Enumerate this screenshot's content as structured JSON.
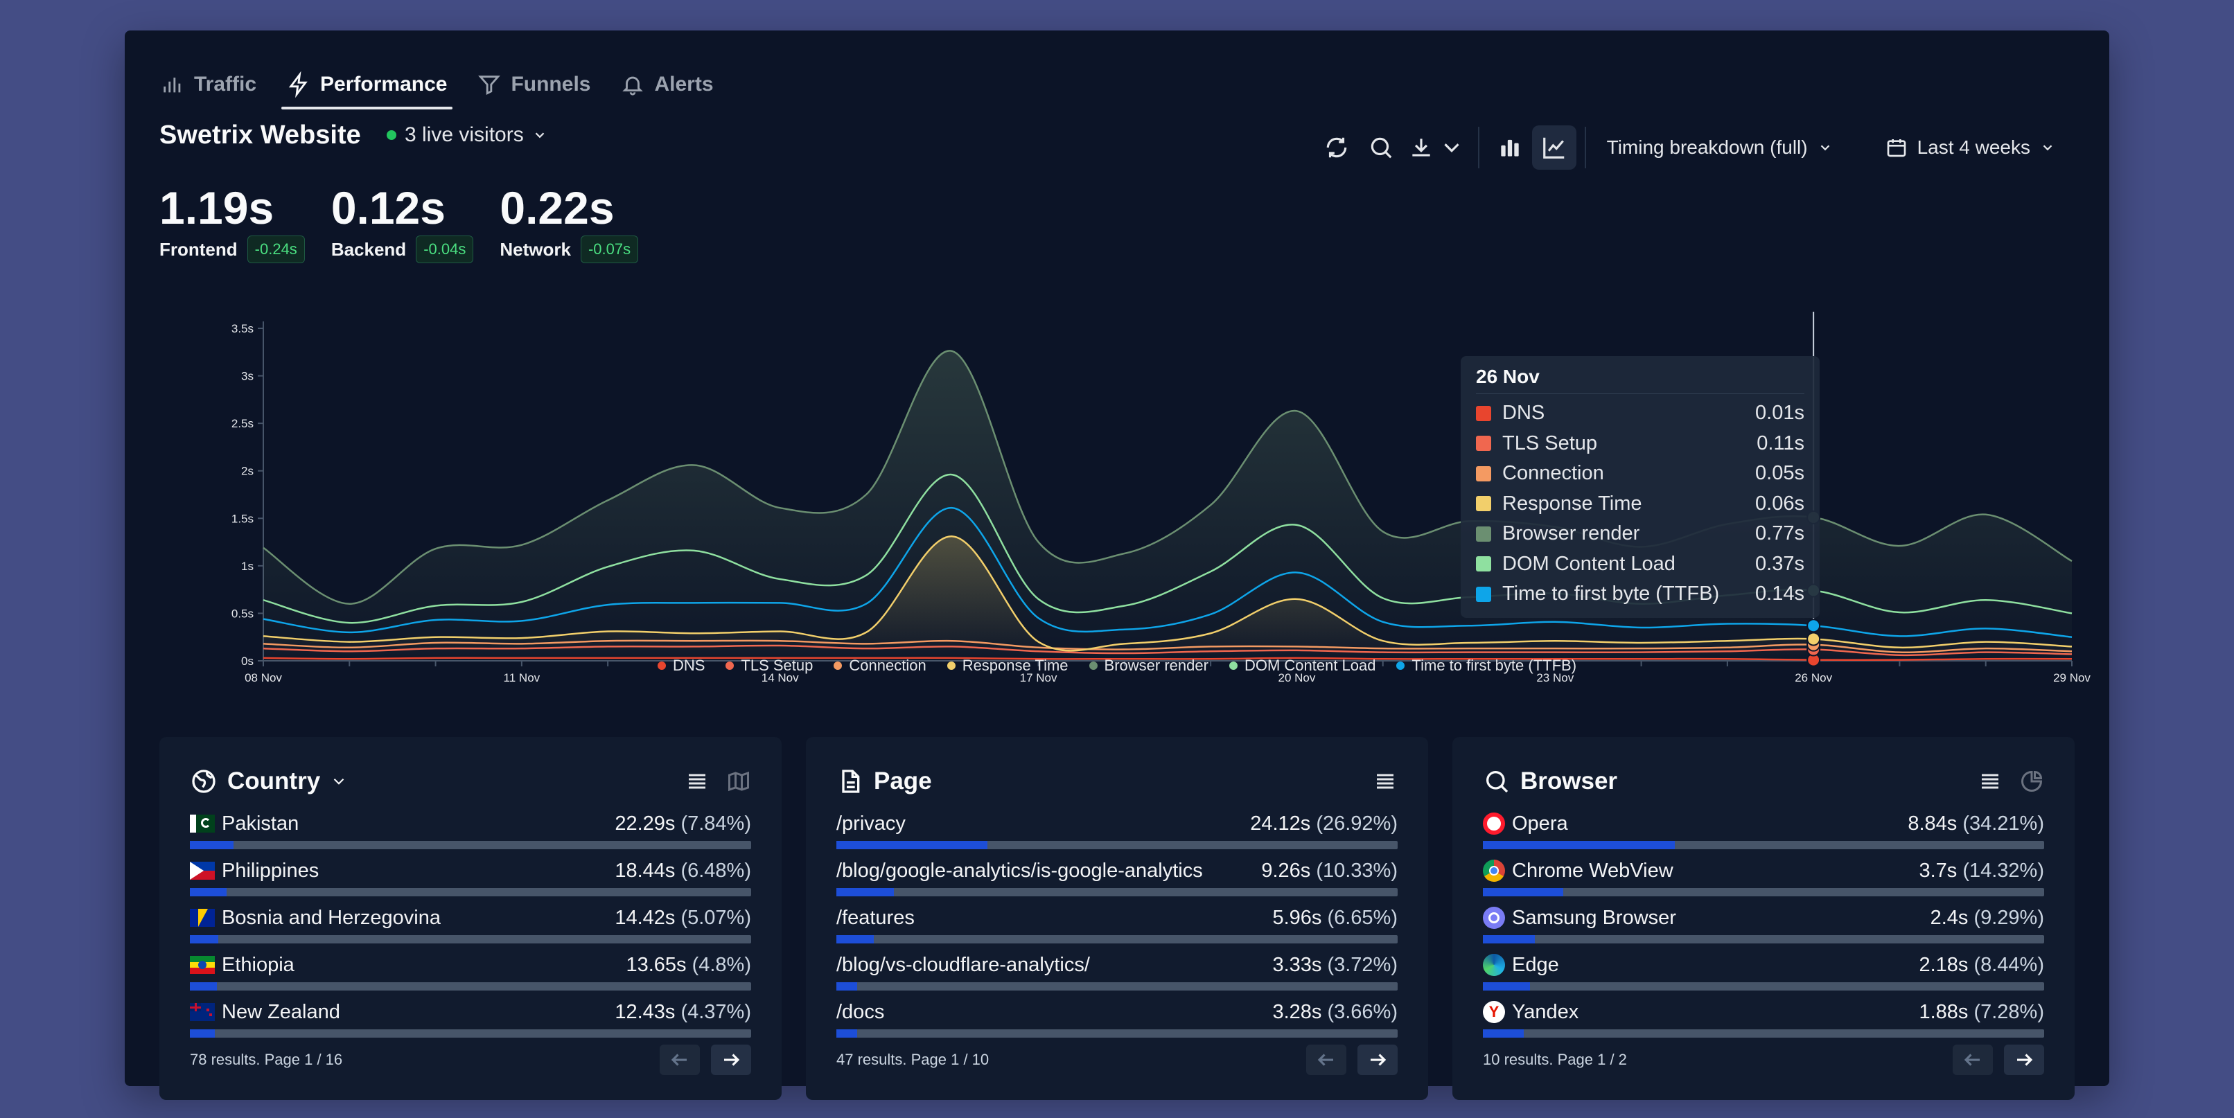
{
  "tabs": [
    {
      "label": "Traffic",
      "icon": "bar-chart-icon"
    },
    {
      "label": "Performance",
      "icon": "lightning-icon",
      "active": true
    },
    {
      "label": "Funnels",
      "icon": "funnel-icon"
    },
    {
      "label": "Alerts",
      "icon": "bell-icon"
    }
  ],
  "header": {
    "site_title": "Swetrix Website",
    "live_visitors": "3 live visitors",
    "timing_dropdown": "Timing breakdown (full)",
    "period_dropdown": "Last 4 weeks"
  },
  "metrics": [
    {
      "value": "1.19s",
      "label": "Frontend",
      "delta": "-0.24s"
    },
    {
      "value": "0.12s",
      "label": "Backend",
      "delta": "-0.04s"
    },
    {
      "value": "0.22s",
      "label": "Network",
      "delta": "-0.07s"
    }
  ],
  "colors": {
    "DNS": "#e8452e",
    "TLS Setup": "#f0674f",
    "Connection": "#f49a62",
    "Response Time": "#f2cf6b",
    "Browser render": "#6b8f71",
    "DOM Content Load": "#8fe0a0",
    "Time to first byte (TTFB)": "#0ea5e9",
    "accent": "#1d4ed8"
  },
  "chart_data": {
    "type": "area",
    "x_ticks": [
      "08 Nov",
      "11 Nov",
      "14 Nov",
      "17 Nov",
      "20 Nov",
      "23 Nov",
      "26 Nov",
      "29 Nov"
    ],
    "y_ticks": [
      "0s",
      "0.5s",
      "1s",
      "1.5s",
      "2s",
      "2.5s",
      "3s",
      "3.5s"
    ],
    "ylim": [
      0,
      3.5
    ],
    "x": [
      "08 Nov",
      "09 Nov",
      "10 Nov",
      "11 Nov",
      "12 Nov",
      "13 Nov",
      "14 Nov",
      "15 Nov",
      "16 Nov",
      "17 Nov",
      "18 Nov",
      "19 Nov",
      "20 Nov",
      "21 Nov",
      "22 Nov",
      "23 Nov",
      "24 Nov",
      "25 Nov",
      "26 Nov",
      "27 Nov",
      "28 Nov",
      "29 Nov"
    ],
    "series": [
      {
        "name": "DNS",
        "values": [
          0.03,
          0.02,
          0.03,
          0.03,
          0.03,
          0.03,
          0.03,
          0.03,
          0.03,
          0.02,
          0.02,
          0.02,
          0.03,
          0.02,
          0.02,
          0.02,
          0.02,
          0.02,
          0.01,
          0.01,
          0.02,
          0.02
        ]
      },
      {
        "name": "TLS Setup",
        "values": [
          0.1,
          0.08,
          0.1,
          0.1,
          0.12,
          0.12,
          0.13,
          0.1,
          0.12,
          0.08,
          0.06,
          0.08,
          0.08,
          0.07,
          0.07,
          0.07,
          0.07,
          0.08,
          0.11,
          0.05,
          0.07,
          0.05
        ]
      },
      {
        "name": "Connection",
        "values": [
          0.05,
          0.04,
          0.06,
          0.05,
          0.06,
          0.06,
          0.05,
          0.05,
          0.06,
          0.04,
          0.04,
          0.05,
          0.04,
          0.04,
          0.04,
          0.04,
          0.04,
          0.04,
          0.05,
          0.03,
          0.04,
          0.03
        ]
      },
      {
        "name": "Response Time",
        "values": [
          0.08,
          0.06,
          0.06,
          0.06,
          0.1,
          0.08,
          0.1,
          0.12,
          1.1,
          0.06,
          0.06,
          0.14,
          0.5,
          0.08,
          0.06,
          0.08,
          0.06,
          0.07,
          0.06,
          0.05,
          0.07,
          0.05
        ]
      },
      {
        "name": "Browser render",
        "values": [
          0.55,
          0.2,
          0.6,
          0.6,
          0.7,
          0.9,
          0.75,
          0.85,
          1.3,
          0.6,
          0.55,
          0.7,
          1.2,
          0.7,
          0.8,
          0.7,
          0.6,
          0.75,
          0.77,
          0.7,
          0.9,
          0.55
        ]
      },
      {
        "name": "DOM Content Load",
        "values": [
          0.2,
          0.1,
          0.15,
          0.2,
          0.4,
          0.55,
          0.25,
          0.3,
          0.35,
          0.2,
          0.25,
          0.45,
          0.5,
          0.25,
          0.3,
          0.3,
          0.25,
          0.3,
          0.37,
          0.25,
          0.3,
          0.25
        ]
      },
      {
        "name": "Time to first byte (TTFB)",
        "values": [
          0.18,
          0.1,
          0.18,
          0.18,
          0.28,
          0.32,
          0.3,
          0.3,
          0.3,
          0.25,
          0.15,
          0.2,
          0.28,
          0.2,
          0.18,
          0.2,
          0.16,
          0.18,
          0.14,
          0.12,
          0.14,
          0.1
        ]
      }
    ],
    "tooltip": {
      "title": "26 Nov",
      "rows": [
        {
          "name": "DNS",
          "value": "0.01s"
        },
        {
          "name": "TLS Setup",
          "value": "0.11s"
        },
        {
          "name": "Connection",
          "value": "0.05s"
        },
        {
          "name": "Response Time",
          "value": "0.06s"
        },
        {
          "name": "Browser render",
          "value": "0.77s"
        },
        {
          "name": "DOM Content Load",
          "value": "0.37s"
        },
        {
          "name": "Time to first byte (TTFB)",
          "value": "0.14s"
        }
      ]
    },
    "legend": [
      "DNS",
      "TLS Setup",
      "Connection",
      "Response Time",
      "Browser render",
      "DOM Content Load",
      "Time to first byte (TTFB)"
    ]
  },
  "panels": {
    "country": {
      "title": "Country",
      "rows": [
        {
          "name": "Pakistan",
          "value": "22.29s",
          "pct": "(7.84%)",
          "share": 0.078,
          "flag": "pk"
        },
        {
          "name": "Philippines",
          "value": "18.44s",
          "pct": "(6.48%)",
          "share": 0.065,
          "flag": "ph"
        },
        {
          "name": "Bosnia and Herzegovina",
          "value": "14.42s",
          "pct": "(5.07%)",
          "share": 0.051,
          "flag": "ba"
        },
        {
          "name": "Ethiopia",
          "value": "13.65s",
          "pct": "(4.8%)",
          "share": 0.048,
          "flag": "et"
        },
        {
          "name": "New Zealand",
          "value": "12.43s",
          "pct": "(4.37%)",
          "share": 0.044,
          "flag": "nz"
        }
      ],
      "footer": "78 results. Page 1 / 16"
    },
    "page": {
      "title": "Page",
      "rows": [
        {
          "name": "/privacy",
          "value": "24.12s",
          "pct": "(26.92%)",
          "share": 0.269
        },
        {
          "name": "/blog/google-analytics/is-google-analytics",
          "value": "9.26s",
          "pct": "(10.33%)",
          "share": 0.103
        },
        {
          "name": "/features",
          "value": "5.96s",
          "pct": "(6.65%)",
          "share": 0.067
        },
        {
          "name": "/blog/vs-cloudflare-analytics/",
          "value": "3.33s",
          "pct": "(3.72%)",
          "share": 0.037
        },
        {
          "name": "/docs",
          "value": "3.28s",
          "pct": "(3.66%)",
          "share": 0.037
        }
      ],
      "footer": "47 results. Page 1 / 10"
    },
    "browser": {
      "title": "Browser",
      "rows": [
        {
          "name": "Opera",
          "value": "8.84s",
          "pct": "(34.21%)",
          "share": 0.342,
          "icon": "opera-icon"
        },
        {
          "name": "Chrome WebView",
          "value": "3.7s",
          "pct": "(14.32%)",
          "share": 0.143,
          "icon": "chrome-icon"
        },
        {
          "name": "Samsung Browser",
          "value": "2.4s",
          "pct": "(9.29%)",
          "share": 0.093,
          "icon": "samsung-icon"
        },
        {
          "name": "Edge",
          "value": "2.18s",
          "pct": "(8.44%)",
          "share": 0.084,
          "icon": "edge-icon"
        },
        {
          "name": "Yandex",
          "value": "1.88s",
          "pct": "(7.28%)",
          "share": 0.073,
          "icon": "yandex-icon"
        }
      ],
      "footer": "10 results. Page 1 / 2"
    }
  }
}
